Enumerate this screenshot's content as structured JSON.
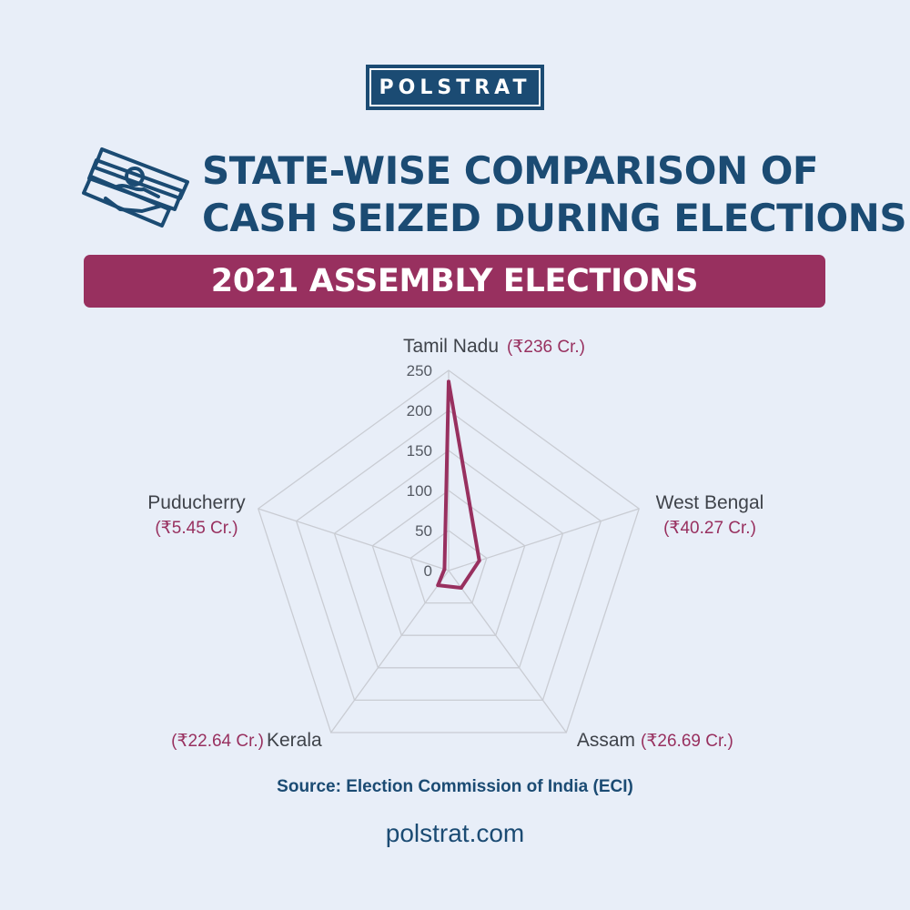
{
  "brand": {
    "logo_text": "POLSTRAT",
    "website": "polstrat.com"
  },
  "header": {
    "title_line1": "STATE-WISE COMPARISON OF",
    "title_line2": "CASH SEIZED DURING ELECTIONS",
    "banner": "2021 ASSEMBLY ELECTIONS"
  },
  "icons": {
    "money": "cash-in-hand-icon"
  },
  "colors": {
    "navy": "#1b4b73",
    "accent": "#98305f",
    "background": "#e8eef8",
    "grid": "#c9ccd3",
    "axis_text": "#555a63"
  },
  "chart_data": {
    "type": "radar",
    "title": "",
    "categories": [
      "Tamil Nadu",
      "West Bengal",
      "Assam",
      "Kerala",
      "Puducherry"
    ],
    "value_labels": [
      "(₹236 Cr.)",
      "(₹40.27 Cr.)",
      "(₹26.69 Cr.)",
      "(₹22.64 Cr.)",
      "(₹5.45 Cr.)"
    ],
    "series": [
      {
        "values": [
          236,
          40.27,
          26.69,
          22.64,
          5.45
        ]
      }
    ],
    "unit": "₹ Cr.",
    "ticks": [
      0,
      50,
      100,
      150,
      200,
      250
    ],
    "rlim": [
      0,
      250
    ],
    "grid": true,
    "legend": "none"
  },
  "footer": {
    "source": "Source: Election Commission of India (ECI)"
  }
}
